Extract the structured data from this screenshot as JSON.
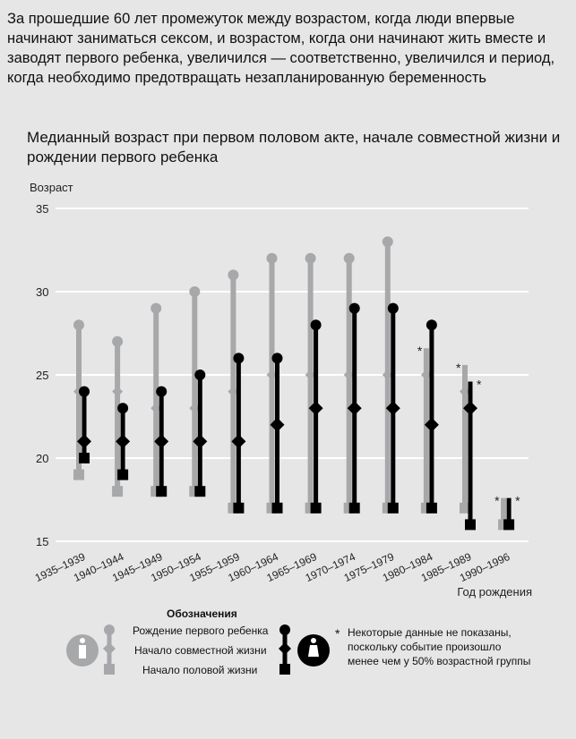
{
  "headline": "За прошедшие 60 лет промежуток между возрастом, когда люди впервые начинают заниматься сексом, и возрастом, когда они начинают жить вместе и заводят первого ребенка, увеличился — соответственно, увеличился и период, когда необходимо предотвращать незапланированную беременность",
  "chart_data": {
    "type": "range-dot",
    "title": "Медианный возраст при первом половом акте, начале совместной жизни и рождении первого ребенка",
    "ylabel": "Возраст",
    "xlabel": "Год рождения",
    "ylim": [
      15,
      35
    ],
    "yticks": [
      "15",
      "20",
      "25",
      "30",
      "35"
    ],
    "grid": true,
    "categories": [
      "1935–1939",
      "1940–1944",
      "1945–1949",
      "1950–1954",
      "1955–1959",
      "1960–1964",
      "1965–1969",
      "1970–1974",
      "1975–1979",
      "1980–1984",
      "1985–1989",
      "1990–1996"
    ],
    "series": [
      {
        "name": "Мужчины",
        "color": "#a7a8aa",
        "first_child": [
          28,
          27,
          29,
          30,
          31,
          32,
          32,
          32,
          33,
          null,
          null,
          null
        ],
        "cohabitation": [
          24,
          24,
          23,
          23,
          24,
          25,
          25,
          25,
          25,
          25,
          24,
          null
        ],
        "first_sex": [
          19,
          18,
          18,
          18,
          17,
          17,
          17,
          17,
          17,
          17,
          17,
          16
        ],
        "truncated_top": [
          null,
          null,
          null,
          null,
          null,
          null,
          null,
          null,
          null,
          26.6,
          25.6,
          17.6
        ]
      },
      {
        "name": "Женщины",
        "color": "#000000",
        "first_child": [
          24,
          23,
          24,
          25,
          26,
          26,
          28,
          29,
          29,
          28,
          null,
          null
        ],
        "cohabitation": [
          21,
          21,
          21,
          21,
          21,
          22,
          23,
          23,
          23,
          22,
          23,
          null
        ],
        "first_sex": [
          20,
          19,
          18,
          18,
          17,
          17,
          17,
          17,
          17,
          17,
          16,
          16
        ],
        "truncated_top": [
          null,
          null,
          null,
          null,
          null,
          null,
          null,
          null,
          null,
          null,
          24.6,
          17.6
        ]
      }
    ]
  },
  "legend": {
    "title": "Обозначения",
    "items": [
      "Рождение первого ребенка",
      "Начало совместной жизни",
      "Начало половой жизни"
    ],
    "note_mark": "*",
    "note": "Некоторые данные не показаны, поскольку событие произошло менее чем у 50% возрастной группы"
  }
}
